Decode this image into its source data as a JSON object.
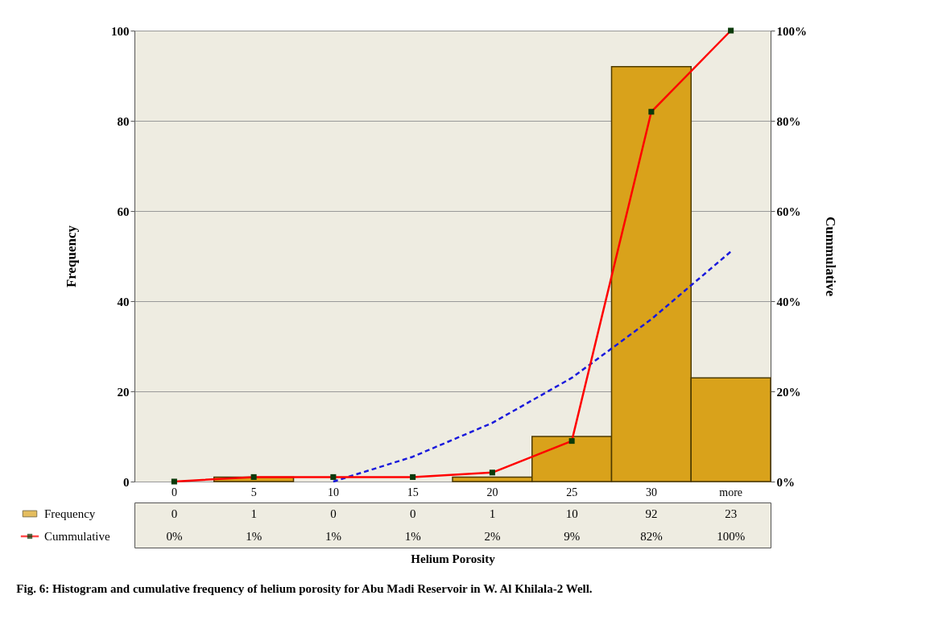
{
  "chart_data": {
    "type": "bar",
    "xlabel": "Helium Porosity",
    "ylabel": "Frequency",
    "y2label": "Cummulative",
    "categories": [
      "0",
      "5",
      "10",
      "15",
      "20",
      "25",
      "30",
      "more"
    ],
    "series": [
      {
        "name": "Frequency",
        "color": "#d9a21b",
        "values": [
          0,
          1,
          0,
          0,
          1,
          10,
          92,
          23
        ],
        "value_labels": [
          "0",
          "1",
          "0",
          "0",
          "1",
          "10",
          "92",
          "23"
        ]
      },
      {
        "name": "Cummulative",
        "type": "line",
        "axis": "y2",
        "color": "#ff0000",
        "marker": "square",
        "values": [
          0,
          1,
          1,
          1,
          2,
          9,
          82,
          100
        ],
        "value_labels": [
          "0%",
          "1%",
          "1%",
          "1%",
          "2%",
          "9%",
          "82%",
          "100%"
        ]
      },
      {
        "type": "line",
        "color": "#1a1adc",
        "line_style": "dashed",
        "values": [
          null,
          null,
          0,
          5.5,
          13,
          23,
          36,
          51
        ]
      }
    ],
    "ylim": [
      0,
      100
    ],
    "yticks": [
      0,
      20,
      40,
      60,
      80,
      100
    ],
    "y2lim": [
      0,
      100
    ],
    "y2ticks": [
      {
        "value": 0,
        "label": "0%"
      },
      {
        "value": 20,
        "label": "20%"
      },
      {
        "value": 40,
        "label": "40%"
      },
      {
        "value": 60,
        "label": "60%"
      },
      {
        "value": 80,
        "label": "80%"
      },
      {
        "value": 100,
        "label": "100%"
      }
    ],
    "grid": "y",
    "legend": "bottom",
    "annotations": [
      "Fig. 6: Histogram and cumulative frequency of helium porosity for Abu Madi Reservoir in W. Al Khilala-2 Well."
    ]
  }
}
